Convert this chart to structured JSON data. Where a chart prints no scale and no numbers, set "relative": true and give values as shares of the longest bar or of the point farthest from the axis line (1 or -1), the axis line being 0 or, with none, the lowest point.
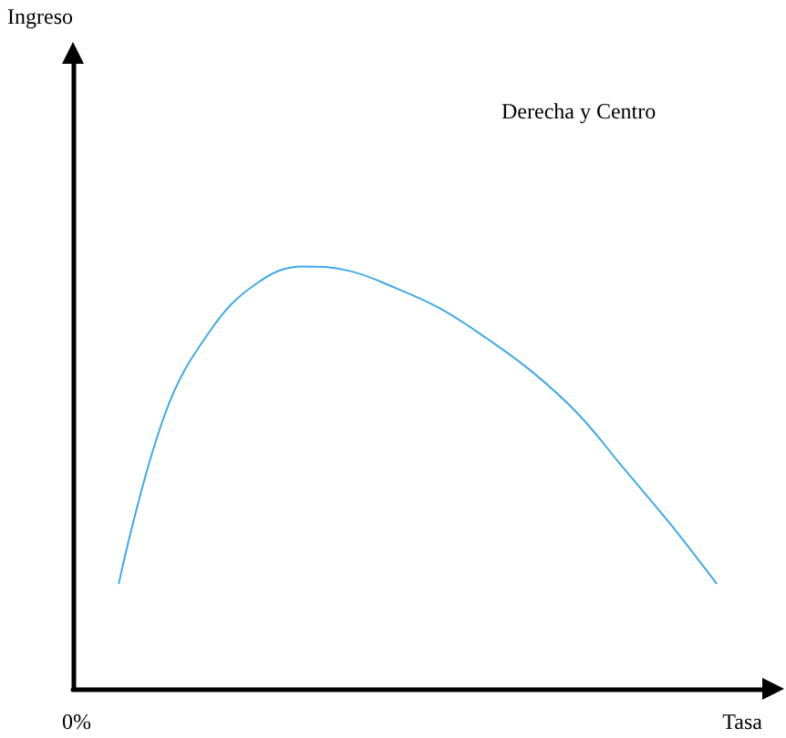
{
  "chart_data": {
    "type": "line",
    "relative": true,
    "xlabel": "Tasa",
    "annotations": [
      "Derecha y Centro",
      "0%",
      "Ingreso"
    ],
    "categories": [
      null,
      null,
      null,
      null,
      null,
      null,
      null,
      null,
      null,
      null,
      null,
      null,
      null,
      null,
      null,
      null
    ],
    "series": [
      {
        "color": "#3fa9e6",
        "values": [
          null,
          0.25,
          0.65,
          0.85,
          0.96,
          1.0,
          0.99,
          0.95,
          0.9,
          0.83,
          0.75,
          0.65,
          0.52,
          0.39,
          0.25,
          null
        ]
      }
    ],
    "grid": false,
    "marker": "none",
    "line_style": "solid"
  }
}
